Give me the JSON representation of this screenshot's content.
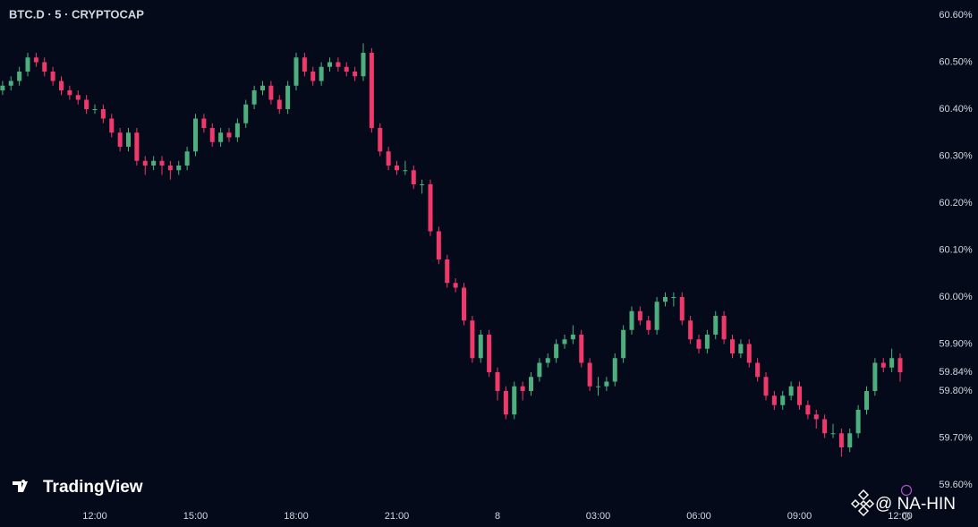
{
  "chart_data": {
    "type": "candlestick",
    "title": "BTC.D · 5 · CRYPTOCAP",
    "watermark": "TradingView",
    "credit": "@ NA-HIN",
    "up_color": "#4caf7d",
    "down_color": "#f0386b",
    "x": [
      "09:15",
      "09:30",
      "09:45",
      "10:00",
      "10:15",
      "10:30",
      "10:45",
      "11:00",
      "11:15",
      "11:30",
      "11:45",
      "12:00",
      "12:15",
      "12:30",
      "12:45",
      "13:00",
      "13:15",
      "13:30",
      "13:45",
      "14:00",
      "14:15",
      "14:30",
      "14:45",
      "15:00",
      "15:15",
      "15:30",
      "15:45",
      "16:00",
      "16:15",
      "16:30",
      "16:45",
      "17:00",
      "17:15",
      "17:30",
      "17:45",
      "18:00",
      "18:15",
      "18:30",
      "18:45",
      "19:00",
      "19:15",
      "19:30",
      "19:45",
      "20:00",
      "20:15",
      "20:30",
      "20:45",
      "21:00",
      "21:15",
      "21:30",
      "21:45",
      "22:00",
      "22:15",
      "22:30",
      "22:45",
      "23:00",
      "23:15",
      "23:30",
      "23:45",
      "00:00",
      "00:15",
      "00:30",
      "00:45",
      "01:00",
      "01:15",
      "01:30",
      "01:45",
      "02:00",
      "02:15",
      "02:30",
      "02:45",
      "03:00",
      "03:15",
      "03:30",
      "03:45",
      "04:00",
      "04:15",
      "04:30",
      "04:45",
      "05:00",
      "05:15",
      "05:30",
      "05:45",
      "06:00",
      "06:15",
      "06:30",
      "06:45",
      "07:00",
      "07:15",
      "07:30",
      "07:45",
      "08:00",
      "08:15",
      "08:30",
      "08:45",
      "09:00",
      "09:15",
      "09:30",
      "09:45",
      "10:00",
      "10:15",
      "10:30",
      "10:45",
      "11:00",
      "11:15",
      "11:30",
      "11:45",
      "12:00"
    ],
    "open": [
      60.44,
      60.45,
      60.46,
      60.48,
      60.51,
      60.5,
      60.48,
      60.46,
      60.44,
      60.43,
      60.42,
      60.4,
      60.4,
      60.38,
      60.35,
      60.32,
      60.35,
      60.29,
      60.28,
      60.29,
      60.28,
      60.27,
      60.28,
      60.31,
      60.38,
      60.36,
      60.33,
      60.35,
      60.34,
      60.37,
      60.41,
      60.44,
      60.45,
      60.42,
      60.4,
      60.45,
      60.51,
      60.48,
      60.46,
      60.49,
      60.5,
      60.49,
      60.48,
      60.47,
      60.52,
      60.36,
      60.31,
      60.28,
      60.27,
      60.27,
      60.24,
      60.24,
      60.14,
      60.08,
      60.03,
      60.02,
      59.95,
      59.87,
      59.92,
      59.84,
      59.8,
      59.75,
      59.81,
      59.8,
      59.83,
      59.86,
      59.87,
      59.9,
      59.91,
      59.92,
      59.86,
      59.81,
      59.81,
      59.82,
      59.87,
      59.93,
      59.97,
      59.95,
      59.93,
      59.99,
      60.0,
      60.0,
      59.95,
      59.91,
      59.89,
      59.92,
      59.96,
      59.91,
      59.88,
      59.9,
      59.86,
      59.83,
      59.79,
      59.77,
      59.79,
      59.81,
      59.77,
      59.75,
      59.74,
      59.71,
      59.71,
      59.68,
      59.71,
      59.76,
      59.8,
      59.86,
      59.85,
      59.87
    ],
    "high": [
      60.46,
      60.47,
      60.49,
      60.52,
      60.52,
      60.51,
      60.49,
      60.47,
      60.45,
      60.44,
      60.43,
      60.41,
      60.41,
      60.39,
      60.36,
      60.36,
      60.36,
      60.3,
      60.3,
      60.3,
      60.29,
      60.29,
      60.32,
      60.39,
      60.39,
      60.37,
      60.36,
      60.36,
      60.38,
      60.42,
      60.45,
      60.46,
      60.46,
      60.43,
      60.46,
      60.52,
      60.52,
      60.49,
      60.5,
      60.51,
      60.51,
      60.5,
      60.49,
      60.54,
      60.53,
      60.37,
      60.32,
      60.29,
      60.29,
      60.28,
      60.25,
      60.25,
      60.15,
      60.09,
      60.04,
      60.03,
      59.96,
      59.93,
      59.93,
      59.85,
      59.81,
      59.82,
      59.82,
      59.84,
      59.87,
      59.88,
      59.91,
      59.92,
      59.94,
      59.93,
      59.87,
      59.83,
      59.83,
      59.88,
      59.94,
      59.98,
      59.98,
      59.96,
      60.0,
      60.01,
      60.01,
      60.01,
      59.96,
      59.92,
      59.93,
      59.97,
      59.97,
      59.92,
      59.91,
      59.91,
      59.87,
      59.84,
      59.8,
      59.8,
      59.82,
      59.82,
      59.78,
      59.76,
      59.75,
      59.73,
      59.72,
      59.72,
      59.77,
      59.81,
      59.87,
      59.87,
      59.89,
      59.88
    ],
    "low": [
      60.43,
      60.44,
      60.45,
      60.47,
      60.49,
      60.47,
      60.45,
      60.43,
      60.42,
      60.41,
      60.39,
      60.39,
      60.37,
      60.34,
      60.31,
      60.31,
      60.28,
      60.26,
      60.27,
      60.26,
      60.25,
      60.26,
      60.27,
      60.3,
      60.35,
      60.32,
      60.32,
      60.33,
      60.33,
      60.36,
      60.4,
      60.43,
      60.41,
      60.39,
      60.39,
      60.44,
      60.47,
      60.45,
      60.45,
      60.48,
      60.48,
      60.47,
      60.46,
      60.46,
      60.35,
      60.3,
      60.27,
      60.26,
      60.26,
      60.23,
      60.22,
      60.13,
      60.07,
      60.02,
      60.01,
      59.94,
      59.86,
      59.86,
      59.83,
      59.78,
      59.74,
      59.74,
      59.78,
      59.79,
      59.82,
      59.85,
      59.86,
      59.89,
      59.9,
      59.85,
      59.8,
      59.79,
      59.8,
      59.81,
      59.86,
      59.92,
      59.94,
      59.92,
      59.92,
      59.98,
      59.98,
      59.94,
      59.9,
      59.88,
      59.88,
      59.91,
      59.9,
      59.87,
      59.87,
      59.85,
      59.82,
      59.78,
      59.76,
      59.76,
      59.78,
      59.76,
      59.74,
      59.72,
      59.7,
      59.7,
      59.66,
      59.67,
      59.7,
      59.75,
      59.79,
      59.84,
      59.84,
      59.82
    ],
    "close": [
      60.45,
      60.46,
      60.48,
      60.51,
      60.5,
      60.48,
      60.46,
      60.44,
      60.43,
      60.42,
      60.4,
      60.4,
      60.38,
      60.35,
      60.32,
      60.35,
      60.29,
      60.28,
      60.29,
      60.28,
      60.27,
      60.28,
      60.31,
      60.38,
      60.36,
      60.33,
      60.35,
      60.34,
      60.37,
      60.41,
      60.44,
      60.45,
      60.42,
      60.4,
      60.45,
      60.51,
      60.48,
      60.46,
      60.49,
      60.5,
      60.49,
      60.48,
      60.47,
      60.52,
      60.36,
      60.31,
      60.28,
      60.27,
      60.27,
      60.24,
      60.24,
      60.14,
      60.08,
      60.03,
      60.02,
      59.95,
      59.87,
      59.92,
      59.84,
      59.8,
      59.75,
      59.81,
      59.8,
      59.83,
      59.86,
      59.87,
      59.9,
      59.91,
      59.92,
      59.86,
      59.81,
      59.81,
      59.82,
      59.87,
      59.93,
      59.97,
      59.95,
      59.93,
      59.99,
      60.0,
      60.0,
      59.95,
      59.91,
      59.89,
      59.92,
      59.96,
      59.91,
      59.88,
      59.9,
      59.86,
      59.83,
      59.79,
      59.77,
      59.79,
      59.81,
      59.77,
      59.75,
      59.74,
      59.71,
      59.71,
      59.68,
      59.71,
      59.76,
      59.8,
      59.86,
      59.85,
      59.87,
      59.84
    ],
    "last_price": {
      "value": 59.84,
      "label": "59.84%"
    },
    "ylim": [
      59.6,
      60.6
    ],
    "yticks": [
      {
        "value": 60.6,
        "label": "60.60%"
      },
      {
        "value": 60.5,
        "label": "60.50%"
      },
      {
        "value": 60.4,
        "label": "60.40%"
      },
      {
        "value": 60.3,
        "label": "60.30%"
      },
      {
        "value": 60.2,
        "label": "60.20%"
      },
      {
        "value": 60.1,
        "label": "60.10%"
      },
      {
        "value": 60.0,
        "label": "60.00%"
      },
      {
        "value": 59.9,
        "label": "59.90%"
      },
      {
        "value": 59.8,
        "label": "59.80%"
      },
      {
        "value": 59.7,
        "label": "59.70%"
      },
      {
        "value": 59.6,
        "label": "59.60%"
      }
    ],
    "xticks": [
      {
        "value": 11,
        "label": "12:00"
      },
      {
        "value": 23,
        "label": "15:00"
      },
      {
        "value": 35,
        "label": "18:00"
      },
      {
        "value": 47,
        "label": "21:00"
      },
      {
        "value": 59,
        "label": "8"
      },
      {
        "value": 71,
        "label": "03:00"
      },
      {
        "value": 83,
        "label": "06:00"
      },
      {
        "value": 95,
        "label": "09:00"
      },
      {
        "value": 107,
        "label": "12:00"
      }
    ]
  }
}
